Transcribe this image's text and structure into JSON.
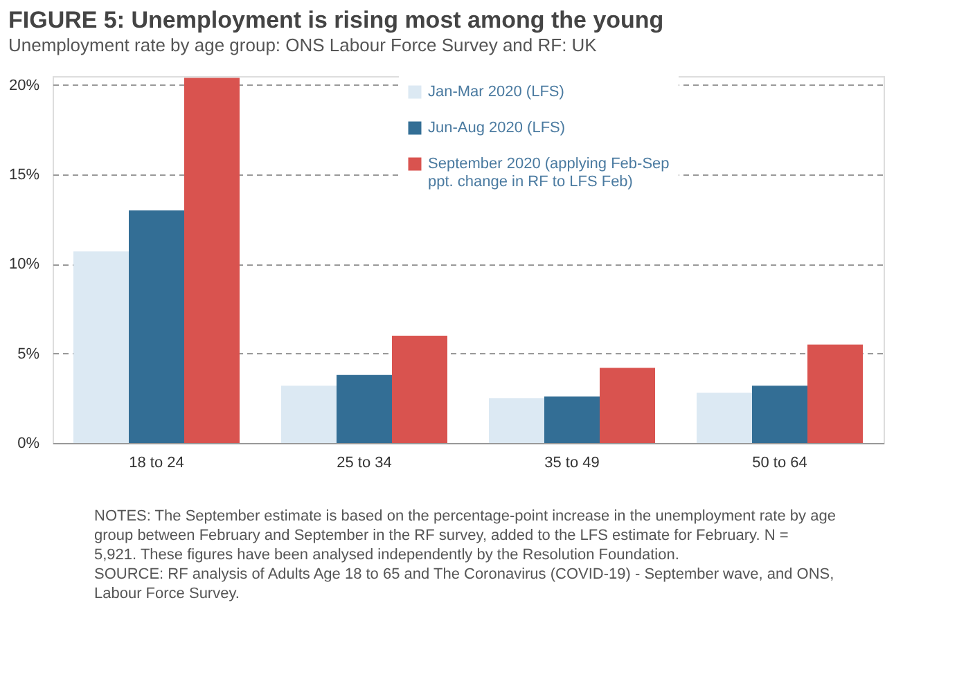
{
  "chart_data": {
    "type": "bar",
    "title": "FIGURE 5: Unemployment is rising most among the young",
    "subtitle": "Unemployment rate by age group: ONS Labour Force Survey and RF: UK",
    "categories": [
      "18 to 24",
      "25 to 34",
      "35 to 49",
      "50 to 64"
    ],
    "series": [
      {
        "name": "Jan-Mar 2020 (LFS)",
        "color": "#dce9f3",
        "values": [
          10.7,
          3.2,
          2.5,
          2.8
        ]
      },
      {
        "name": "Jun-Aug 2020 (LFS)",
        "color": "#336e95",
        "values": [
          13.0,
          3.8,
          2.6,
          3.2
        ]
      },
      {
        "name": "September 2020 (applying Feb-Sep ppt. change in RF to LFS Feb)",
        "color": "#d9534f",
        "values": [
          20.4,
          6.0,
          4.2,
          5.5
        ]
      }
    ],
    "ylim": [
      0,
      20.5
    ],
    "yticks": [
      {
        "value": 0,
        "label": "0%"
      },
      {
        "value": 5,
        "label": "5%"
      },
      {
        "value": 10,
        "label": "10%"
      },
      {
        "value": 15,
        "label": "15%"
      },
      {
        "value": 20,
        "label": "20%"
      }
    ],
    "grid": "y",
    "legend": "top",
    "annotations": [
      "NOTES: The September estimate is based on the percentage-point increase in the unemployment rate by age group between February and September in the RF survey, added to the LFS estimate for February. N = 5,921. These figures have been analysed independently by the Resolution Foundation.",
      "SOURCE: RF analysis of Adults Age 18 to 65 and The Coronavirus (COVID-19) - September wave, and ONS, Labour Force Survey."
    ]
  }
}
